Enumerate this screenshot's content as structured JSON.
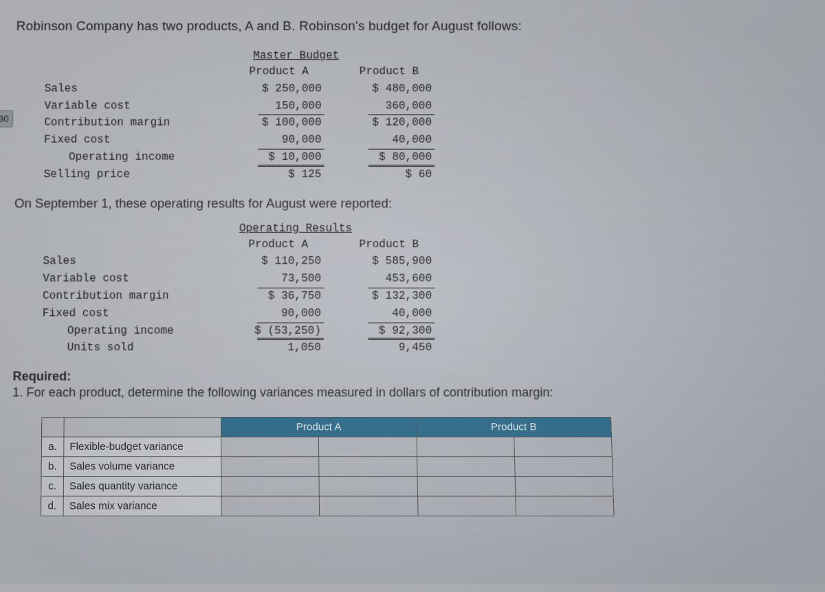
{
  "page_tab": "30",
  "intro": "Robinson Company has two products, A and B. Robinson's budget for August follows:",
  "budget": {
    "title": "Master Budget",
    "col_a": "Product A",
    "col_b": "Product B",
    "rows": [
      {
        "label": "Sales",
        "a": "$ 250,000",
        "b": "$ 480,000"
      },
      {
        "label": "Variable cost",
        "a": "150,000",
        "b": "360,000"
      },
      {
        "label": "Contribution margin",
        "a": "$ 100,000",
        "b": "$ 120,000"
      },
      {
        "label": "Fixed cost",
        "a": "90,000",
        "b": "40,000"
      },
      {
        "label": "Operating income",
        "a": "$ 10,000",
        "b": "$ 80,000"
      },
      {
        "label": "Selling price",
        "a": "$ 125",
        "b": "$ 60"
      }
    ]
  },
  "mid": "On September 1, these operating results for August were reported:",
  "results": {
    "title": "Operating Results",
    "col_a": "Product A",
    "col_b": "Product B",
    "rows": [
      {
        "label": "Sales",
        "a": "$ 110,250",
        "b": "$ 585,900"
      },
      {
        "label": "Variable cost",
        "a": "73,500",
        "b": "453,600"
      },
      {
        "label": "Contribution margin",
        "a": "$ 36,750",
        "b": "$ 132,300"
      },
      {
        "label": "Fixed cost",
        "a": "90,000",
        "b": "40,000"
      },
      {
        "label": "Operating income",
        "a": "$ (53,250)",
        "b": "$ 92,300"
      },
      {
        "label": "Units sold",
        "a": "1,050",
        "b": "9,450"
      }
    ]
  },
  "required_hdr": "Required:",
  "required_1": "1. For each product, determine the following variances measured in dollars of contribution margin:",
  "answer": {
    "prod_a": "Product A",
    "prod_b": "Product B",
    "rows": [
      {
        "k": "a.",
        "label": "Flexible-budget variance"
      },
      {
        "k": "b.",
        "label": "Sales volume variance"
      },
      {
        "k": "c.",
        "label": "Sales quantity variance"
      },
      {
        "k": "d.",
        "label": "Sales mix variance"
      }
    ]
  },
  "colors": {
    "header_bg": "#2f6f8f",
    "header_fg": "#e9eef1",
    "grid": "#555555",
    "shade": "#d0d4d9",
    "body_text": "#2a2a2a"
  }
}
